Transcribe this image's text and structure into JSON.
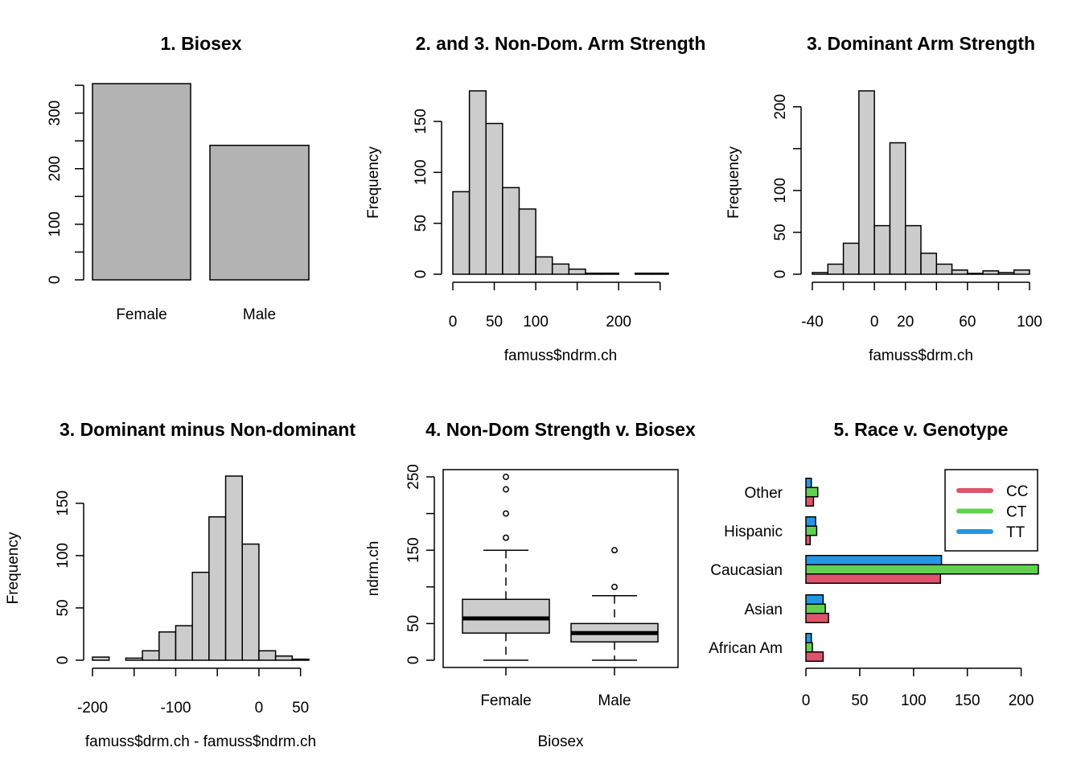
{
  "chart_data": [
    {
      "type": "bar",
      "title": "1. Biosex",
      "categories": [
        "Female",
        "Male"
      ],
      "values": [
        353,
        242
      ],
      "ylim": [
        0,
        353
      ],
      "yticks": [
        0,
        100,
        200,
        300
      ],
      "bar_color": "#b3b3b3"
    },
    {
      "type": "bar",
      "title": "2. and 3. Non-Dom. Arm Strength",
      "xlabel": "famuss$ndrm.ch",
      "ylabel": "Frequency",
      "bin_edges": [
        0,
        20,
        40,
        60,
        80,
        100,
        120,
        140,
        160,
        180,
        200,
        220,
        240,
        260
      ],
      "values": [
        81,
        180,
        148,
        85,
        64,
        17,
        10,
        5,
        1,
        1,
        0,
        1,
        1
      ],
      "xticks": [
        0,
        50,
        100,
        200
      ],
      "yticks": [
        0,
        50,
        100,
        150
      ],
      "bar_color": "#cccccc"
    },
    {
      "type": "bar",
      "title": "3. Dominant Arm Strength",
      "xlabel": "famuss$drm.ch",
      "ylabel": "Frequency",
      "bin_edges": [
        -40,
        -30,
        -20,
        -10,
        0,
        10,
        20,
        30,
        40,
        50,
        60,
        70,
        80,
        90,
        100
      ],
      "values": [
        2,
        12,
        37,
        219,
        58,
        157,
        58,
        25,
        12,
        5,
        1,
        4,
        2,
        5
      ],
      "xticks": [
        -40,
        0,
        20,
        60,
        100
      ],
      "yticks": [
        0,
        50,
        100,
        200
      ],
      "bar_color": "#cccccc"
    },
    {
      "type": "bar",
      "title": "3. Dominant minus Non-dominant",
      "xlabel": "famuss$drm.ch - famuss$ndrm.ch",
      "ylabel": "Frequency",
      "bin_edges": [
        -200,
        -180,
        -160,
        -140,
        -120,
        -100,
        -80,
        -60,
        -40,
        -20,
        0,
        20,
        40,
        60
      ],
      "values": [
        3,
        0,
        2,
        9,
        27,
        33,
        84,
        137,
        176,
        111,
        9,
        4,
        1
      ],
      "xticks": [
        -200,
        -100,
        0,
        50
      ],
      "yticks": [
        0,
        50,
        100,
        150
      ],
      "bar_color": "#cccccc"
    },
    {
      "type": "box",
      "title": "4. Non-Dom Strength v. Biosex",
      "xlabel": "Biosex",
      "ylabel": "ndrm.ch",
      "categories": [
        "Female",
        "Male"
      ],
      "boxes": [
        {
          "min": 0,
          "q1": 37,
          "median": 57,
          "q3": 83,
          "max": 150,
          "outliers": [
            167,
            200,
            233,
            250
          ]
        },
        {
          "min": 0,
          "q1": 25,
          "median": 37,
          "q3": 50,
          "max": 88,
          "outliers": [
            100,
            150
          ]
        }
      ],
      "ylim": [
        0,
        250
      ],
      "yticks": [
        0,
        50,
        150,
        250
      ],
      "box_color": "#cccccc"
    },
    {
      "type": "bar",
      "orientation": "horizontal",
      "title": "5. Race v. Genotype",
      "categories": [
        "African Am",
        "Asian",
        "Caucasian",
        "Hispanic",
        "Other"
      ],
      "series": [
        {
          "name": "CC",
          "color": "#df536b",
          "values": [
            16,
            21,
            125,
            4,
            7
          ]
        },
        {
          "name": "CT",
          "color": "#61d04f",
          "values": [
            6,
            18,
            216,
            10,
            11
          ]
        },
        {
          "name": "TT",
          "color": "#2297e6",
          "values": [
            5,
            16,
            126,
            9,
            5
          ]
        }
      ],
      "xticks": [
        0,
        50,
        100,
        150,
        200
      ],
      "legend": "top-right"
    }
  ]
}
